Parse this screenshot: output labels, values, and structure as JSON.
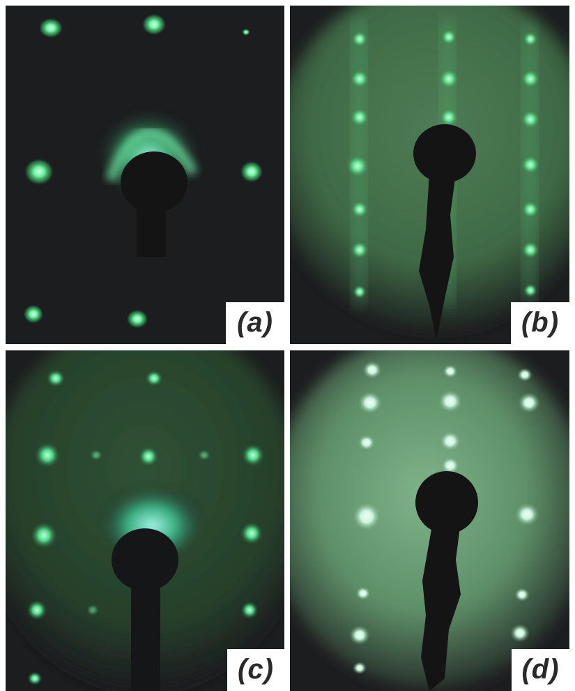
{
  "panels": [
    {
      "id": "a",
      "label": "(a)"
    },
    {
      "id": "b",
      "label": "(b)"
    },
    {
      "id": "c",
      "label": "(c)"
    },
    {
      "id": "d",
      "label": "(d)"
    }
  ],
  "colors": {
    "background": "#1b1c1e",
    "screen_glow": "#6fa678",
    "spot": "#6af29a",
    "spot_core": "#d6fff0",
    "beam_shadow": "#141415",
    "label_bg": "#ffffff",
    "label_text": "#2a2a2a"
  }
}
